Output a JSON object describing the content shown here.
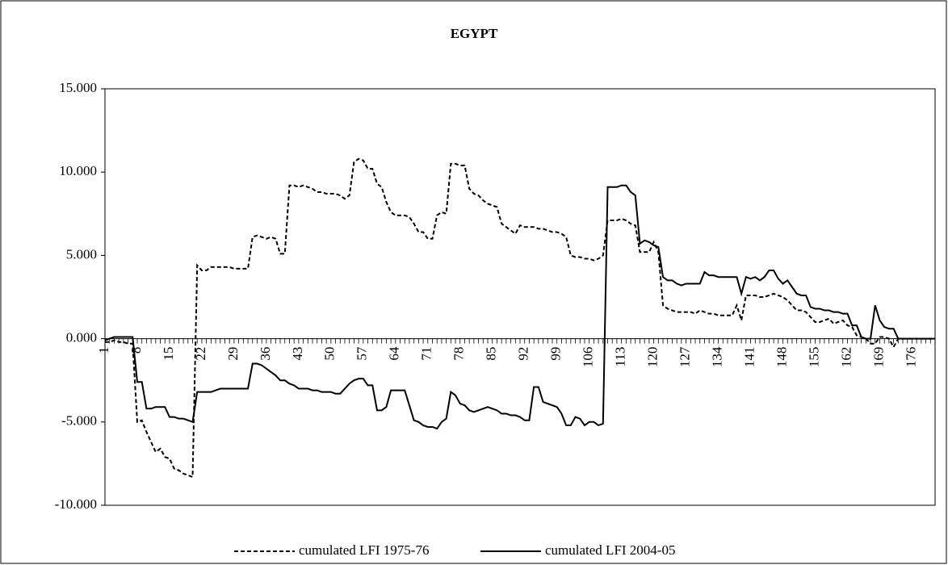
{
  "chart_data": {
    "type": "line",
    "title": "EGYPT",
    "x": [
      1,
      2,
      3,
      4,
      5,
      6,
      7,
      8,
      9,
      10,
      11,
      12,
      13,
      14,
      15,
      16,
      17,
      18,
      19,
      20,
      21,
      22,
      23,
      24,
      25,
      26,
      27,
      28,
      29,
      30,
      31,
      32,
      33,
      34,
      35,
      36,
      37,
      38,
      39,
      40,
      41,
      42,
      43,
      44,
      45,
      46,
      47,
      48,
      49,
      50,
      51,
      52,
      53,
      54,
      55,
      56,
      57,
      58,
      59,
      60,
      61,
      62,
      63,
      64,
      65,
      66,
      67,
      68,
      69,
      70,
      71,
      72,
      73,
      74,
      75,
      76,
      77,
      78,
      79,
      80,
      81,
      82,
      83,
      84,
      85,
      86,
      87,
      88,
      89,
      90,
      91,
      92,
      93,
      94,
      95,
      96,
      97,
      98,
      99,
      100,
      101,
      102,
      103,
      104,
      105,
      106,
      107,
      108,
      109,
      110,
      111,
      112,
      113,
      114,
      115,
      116,
      117,
      118,
      119,
      120,
      121,
      122,
      123,
      124,
      125,
      126,
      127,
      128,
      129,
      130,
      131,
      132,
      133,
      134,
      135,
      136,
      137,
      138,
      139,
      140,
      141,
      142,
      143,
      144,
      145,
      146,
      147,
      148,
      149,
      150,
      151,
      152,
      153,
      154,
      155,
      156,
      157,
      158,
      159,
      160,
      161,
      162,
      163,
      164,
      165,
      166,
      167,
      168,
      169,
      170,
      171,
      172,
      173,
      174,
      175,
      176,
      177,
      178,
      179,
      180,
      181
    ],
    "xlim": [
      1,
      181
    ],
    "xticks": [
      1,
      8,
      15,
      22,
      29,
      36,
      43,
      50,
      57,
      64,
      71,
      78,
      85,
      92,
      99,
      106,
      113,
      120,
      127,
      134,
      141,
      148,
      155,
      162,
      169,
      176
    ],
    "ylim": [
      -10,
      15
    ],
    "yticks": [
      {
        "value": -10,
        "label": "-10.000"
      },
      {
        "value": -5,
        "label": "-5.000"
      },
      {
        "value": 0,
        "label": "0.000"
      },
      {
        "value": 5,
        "label": "5.000"
      },
      {
        "value": 10,
        "label": "10.000"
      },
      {
        "value": 15,
        "label": "15.000"
      }
    ],
    "series": [
      {
        "name": "cumulated LFI 1975-76",
        "color": "#000000",
        "dash": "dashed",
        "values": [
          -0.2,
          -0.2,
          -0.1,
          -0.2,
          -0.2,
          -0.3,
          -0.3,
          -5.0,
          -4.9,
          -5.6,
          -6.2,
          -6.8,
          -6.6,
          -7.1,
          -7.2,
          -7.8,
          -7.9,
          -8.1,
          -8.2,
          -8.3,
          4.4,
          4.1,
          4.1,
          4.3,
          4.3,
          4.3,
          4.3,
          4.3,
          4.2,
          4.2,
          4.2,
          4.2,
          6.1,
          6.2,
          6.1,
          6.0,
          6.1,
          6.0,
          5.1,
          5.1,
          9.2,
          9.2,
          9.1,
          9.2,
          9.1,
          9.0,
          8.8,
          8.8,
          8.7,
          8.7,
          8.7,
          8.6,
          8.4,
          8.6,
          10.6,
          10.8,
          10.7,
          10.2,
          10.2,
          9.3,
          9.1,
          8.2,
          7.6,
          7.4,
          7.4,
          7.4,
          7.3,
          6.9,
          6.4,
          6.4,
          6.0,
          6.0,
          7.4,
          7.6,
          7.5,
          10.5,
          10.5,
          10.4,
          10.4,
          9.0,
          8.7,
          8.6,
          8.3,
          8.1,
          8.0,
          7.9,
          6.9,
          6.7,
          6.5,
          6.3,
          6.8,
          6.7,
          6.7,
          6.7,
          6.6,
          6.6,
          6.5,
          6.4,
          6.4,
          6.3,
          6.1,
          5.0,
          4.9,
          4.9,
          4.8,
          4.8,
          4.7,
          4.8,
          5.0,
          7.1,
          7.1,
          7.1,
          7.2,
          7.1,
          6.9,
          6.8,
          5.2,
          5.2,
          5.2,
          5.8,
          5.2,
          2.0,
          1.8,
          1.7,
          1.6,
          1.6,
          1.6,
          1.6,
          1.5,
          1.7,
          1.6,
          1.5,
          1.5,
          1.4,
          1.4,
          1.4,
          1.4,
          2.0,
          1.1,
          2.6,
          2.6,
          2.6,
          2.5,
          2.5,
          2.6,
          2.7,
          2.6,
          2.5,
          2.3,
          2.0,
          1.7,
          1.7,
          1.6,
          1.3,
          1.0,
          1.0,
          1.1,
          1.2,
          0.9,
          1.0,
          1.1,
          0.8,
          0.7,
          0.2,
          0.1,
          0.0,
          -0.3,
          -0.3,
          0.1,
          0.1,
          0.0,
          -0.5,
          0.0,
          0,
          0,
          0,
          0,
          0,
          0,
          0,
          0
        ]
      },
      {
        "name": "cumulated LFI 2004-05",
        "color": "#000000",
        "dash": "solid",
        "values": [
          -0.1,
          0.0,
          0.1,
          0.1,
          0.1,
          0.1,
          0.1,
          -2.6,
          -2.6,
          -4.2,
          -4.2,
          -4.1,
          -4.1,
          -4.1,
          -4.7,
          -4.7,
          -4.8,
          -4.8,
          -4.9,
          -5.0,
          -3.2,
          -3.2,
          -3.2,
          -3.2,
          -3.1,
          -3.0,
          -3.0,
          -3.0,
          -3.0,
          -3.0,
          -3.0,
          -3.0,
          -1.5,
          -1.5,
          -1.6,
          -1.8,
          -2.0,
          -2.2,
          -2.5,
          -2.5,
          -2.7,
          -2.8,
          -3.0,
          -3.0,
          -3.0,
          -3.1,
          -3.1,
          -3.2,
          -3.2,
          -3.2,
          -3.3,
          -3.3,
          -3.0,
          -2.7,
          -2.5,
          -2.4,
          -2.4,
          -2.8,
          -2.8,
          -4.3,
          -4.3,
          -4.1,
          -3.1,
          -3.1,
          -3.1,
          -3.1,
          -4.0,
          -4.9,
          -5.0,
          -5.2,
          -5.3,
          -5.3,
          -5.4,
          -5.0,
          -4.8,
          -3.2,
          -3.4,
          -3.9,
          -4.0,
          -4.3,
          -4.4,
          -4.3,
          -4.2,
          -4.1,
          -4.2,
          -4.3,
          -4.5,
          -4.5,
          -4.6,
          -4.6,
          -4.7,
          -4.9,
          -4.9,
          -2.9,
          -2.9,
          -3.8,
          -3.9,
          -4.0,
          -4.1,
          -4.5,
          -5.2,
          -5.2,
          -4.7,
          -4.8,
          -5.2,
          -5.0,
          -5.0,
          -5.2,
          -5.1,
          9.1,
          9.1,
          9.1,
          9.2,
          9.2,
          8.8,
          8.6,
          5.7,
          5.9,
          5.8,
          5.6,
          5.5,
          3.7,
          3.5,
          3.5,
          3.3,
          3.2,
          3.3,
          3.3,
          3.3,
          3.3,
          4.0,
          3.8,
          3.8,
          3.7,
          3.7,
          3.7,
          3.7,
          3.7,
          2.7,
          3.7,
          3.6,
          3.7,
          3.5,
          3.7,
          4.1,
          4.1,
          3.6,
          3.3,
          3.5,
          3.1,
          2.7,
          2.6,
          2.6,
          1.9,
          1.8,
          1.8,
          1.7,
          1.7,
          1.6,
          1.6,
          1.5,
          1.5,
          0.8,
          0.8,
          0.1,
          0.0,
          0.0,
          2.0,
          1.1,
          0.7,
          0.6,
          0.6,
          0.0,
          0,
          0,
          0,
          0,
          0,
          0,
          0,
          0
        ]
      }
    ]
  }
}
